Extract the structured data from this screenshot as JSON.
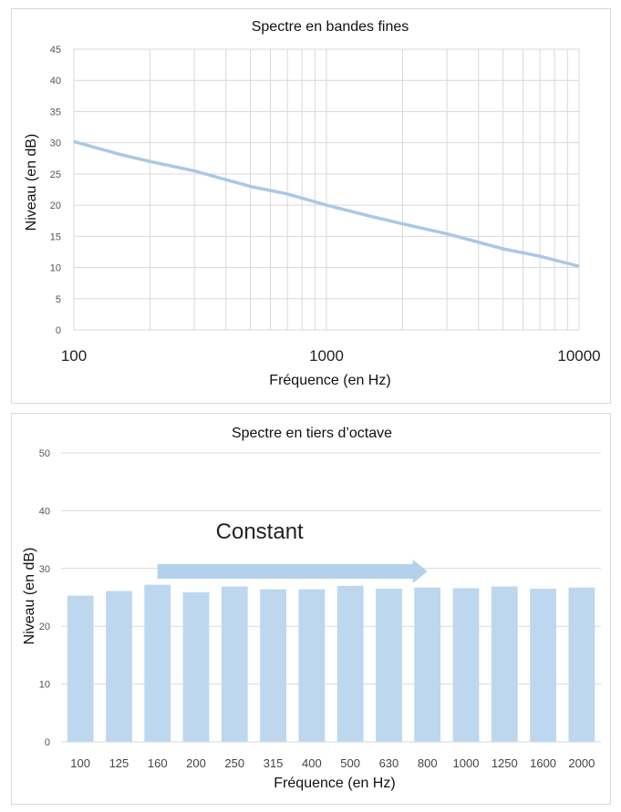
{
  "chart_data": [
    {
      "type": "line",
      "title": "Spectre en bandes fines",
      "xlabel": "Fréquence (en Hz)",
      "ylabel": "Niveau (en dB)",
      "xscale": "log",
      "xlim": [
        100,
        10000
      ],
      "ylim": [
        0,
        45
      ],
      "x_ticks": [
        "100",
        "1000",
        "10000"
      ],
      "y_ticks": [
        "0",
        "5",
        "10",
        "15",
        "20",
        "25",
        "30",
        "35",
        "40",
        "45"
      ],
      "grid": true,
      "line_color": "#a9c8e6",
      "series": [
        {
          "name": "Spectre",
          "x": [
            100,
            150,
            200,
            300,
            500,
            700,
            1000,
            1500,
            2000,
            3000,
            5000,
            7000,
            10000
          ],
          "y": [
            30.2,
            28.2,
            27.0,
            25.5,
            23.0,
            21.8,
            20.0,
            18.2,
            17.0,
            15.4,
            13.0,
            11.8,
            10.2
          ]
        }
      ]
    },
    {
      "type": "bar",
      "title": "Spectre en tiers d’octave",
      "xlabel": "Fréquence (en Hz)",
      "ylabel": "Niveau (en dB)",
      "ylim": [
        0,
        50
      ],
      "y_ticks": [
        "0",
        "10",
        "20",
        "30",
        "40",
        "50"
      ],
      "grid": true,
      "bar_color": "#bdd7ee",
      "categories": [
        "100",
        "125",
        "160",
        "200",
        "250",
        "315",
        "400",
        "500",
        "630",
        "800",
        "1000",
        "1250",
        "1600",
        "2000"
      ],
      "values": [
        25.3,
        26.1,
        27.2,
        25.9,
        26.9,
        26.4,
        26.4,
        27.0,
        26.5,
        26.7,
        26.6,
        26.9,
        26.5,
        26.7
      ],
      "annotation": {
        "text": "Constant",
        "color": "#5b9bd5",
        "arrow_color": "#b4d1ec",
        "arrow_from_category": "160",
        "arrow_to_category": "800",
        "arrow_level": 29.5
      }
    }
  ]
}
